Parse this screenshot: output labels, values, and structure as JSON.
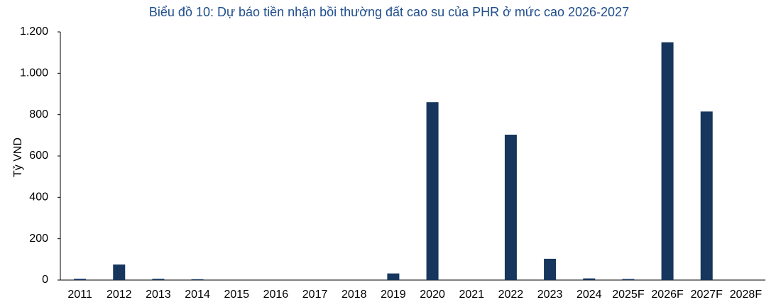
{
  "chart_data": {
    "type": "bar",
    "title": "Biểu đồ 10: Dự báo tiền nhận bồi thường đất cao su của PHR ở mức cao 2026-2027",
    "y_label": "Tỷ VND",
    "categories": [
      "2011",
      "2012",
      "2013",
      "2014",
      "2015",
      "2016",
      "2017",
      "2018",
      "2019",
      "2020",
      "2021",
      "2022",
      "2023",
      "2024",
      "2025F",
      "2026F",
      "2027F",
      "2028F"
    ],
    "values": [
      6,
      75,
      6,
      4,
      0,
      0,
      0,
      0,
      32,
      860,
      0,
      703,
      103,
      8,
      5,
      1150,
      815,
      0
    ],
    "color": "#17365d",
    "ylim": [
      0,
      1200
    ],
    "yticks": [
      0,
      200,
      400,
      600,
      800,
      {
        "value": 1000,
        "label": "1.000"
      },
      {
        "value": 1200,
        "label": "1.200"
      }
    ],
    "grid": false
  }
}
